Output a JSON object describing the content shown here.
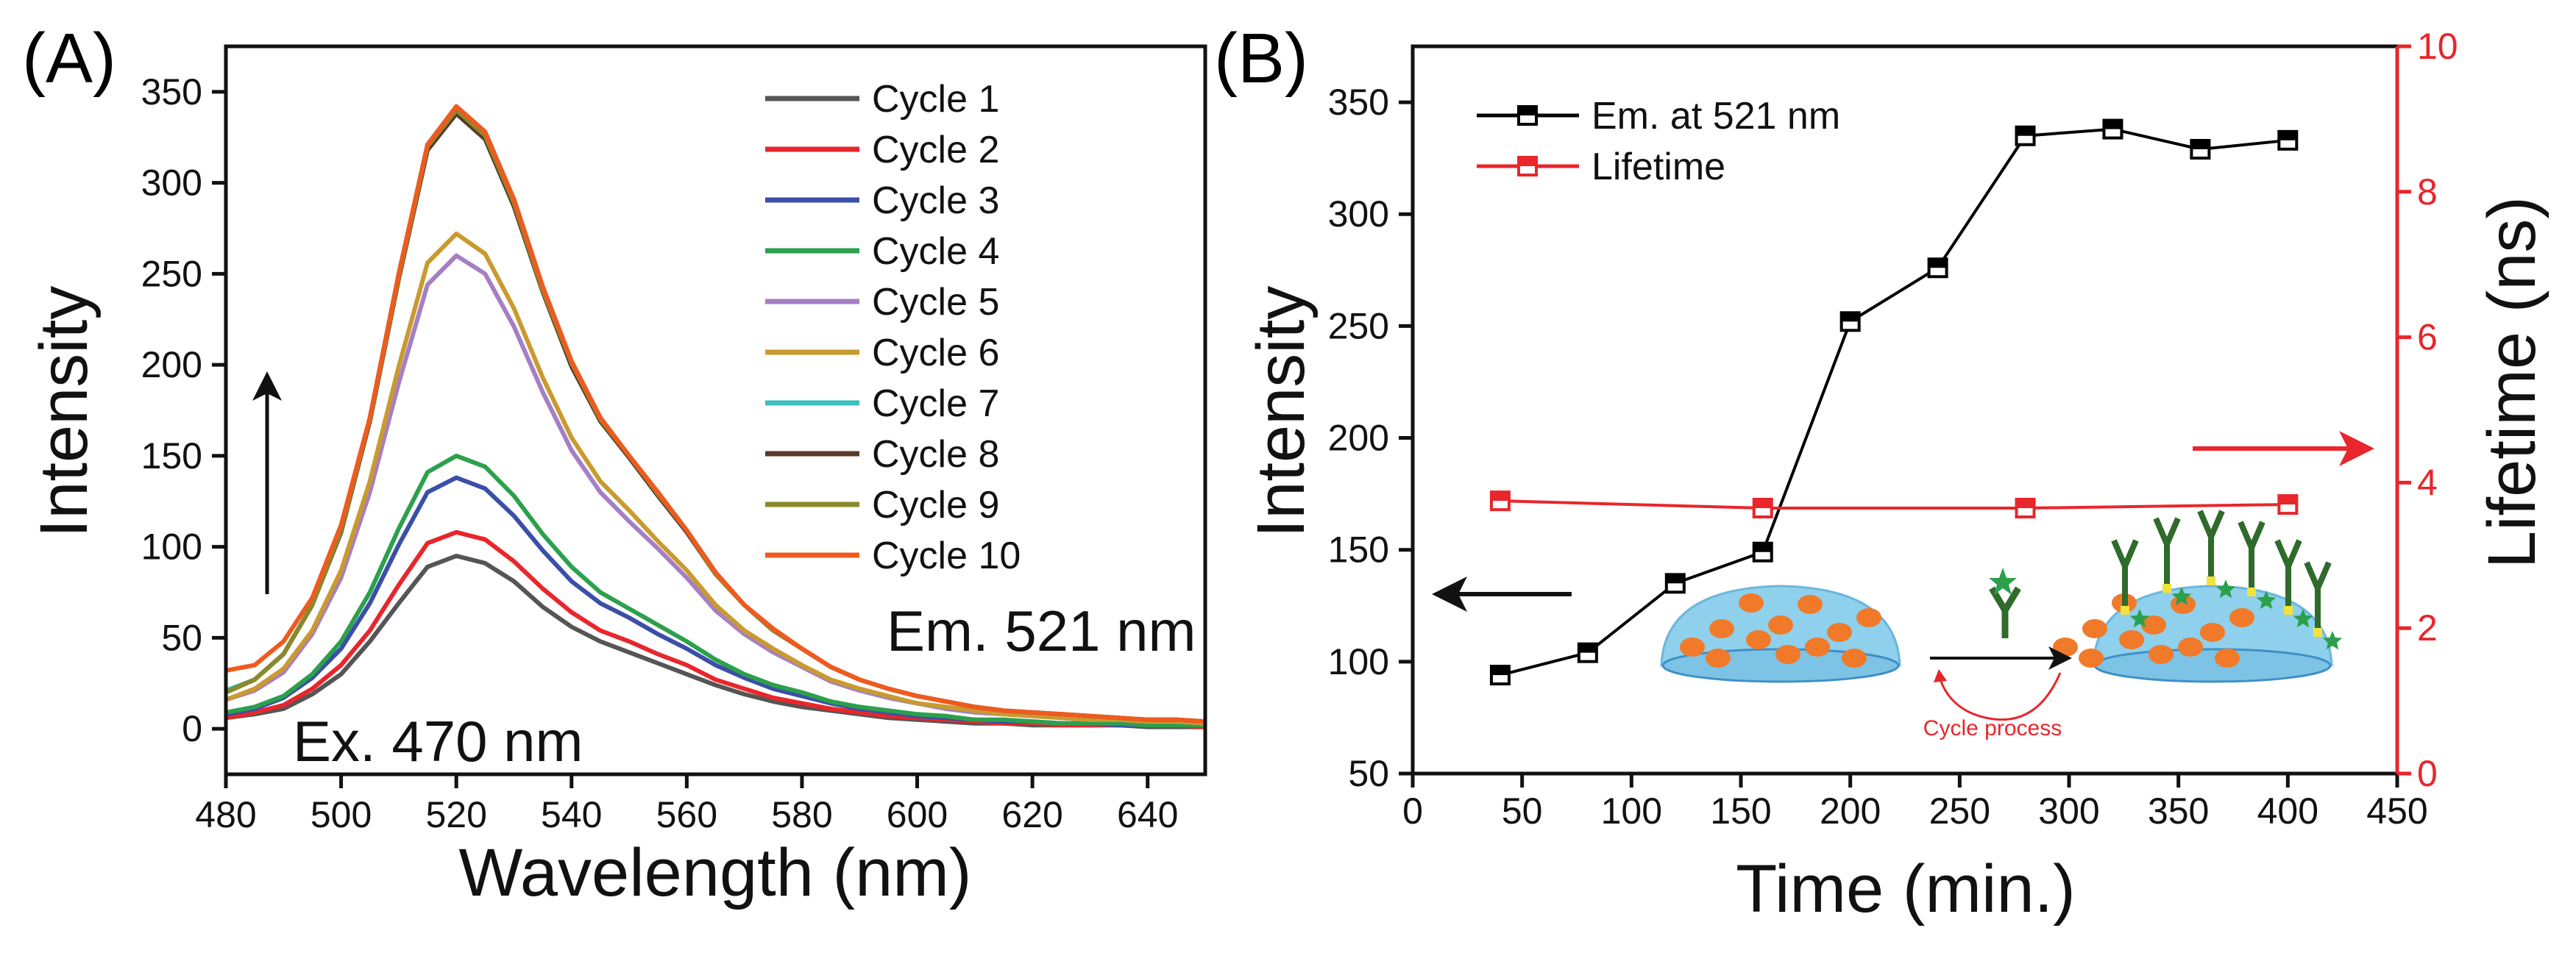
{
  "chart_data": [
    {
      "panel_label": "(A)",
      "type": "line",
      "xlabel": "Wavelength (nm)",
      "ylabel": "Intensity",
      "xlim": [
        480,
        650
      ],
      "ylim": [
        -25,
        375
      ],
      "xticks": [
        480,
        500,
        520,
        540,
        560,
        580,
        600,
        620,
        640
      ],
      "yticks": [
        0,
        50,
        100,
        150,
        200,
        250,
        300,
        350
      ],
      "grid": false,
      "legend_position": "top-right",
      "annotations": [
        "Ex. 470 nm",
        "Em. 521 nm"
      ],
      "x": [
        480,
        485,
        490,
        495,
        500,
        505,
        510,
        515,
        520,
        525,
        530,
        535,
        540,
        545,
        550,
        555,
        560,
        565,
        570,
        575,
        580,
        585,
        590,
        595,
        600,
        605,
        610,
        615,
        620,
        625,
        630,
        635,
        640,
        645,
        650
      ],
      "series": [
        {
          "name": "Cycle 1",
          "color": "#555555",
          "values": [
            6,
            8,
            11,
            19,
            30,
            48,
            69,
            89,
            95,
            91,
            81,
            67,
            56,
            48,
            42,
            36,
            30,
            24,
            19,
            15,
            12,
            10,
            8,
            6,
            5,
            4,
            3,
            3,
            2,
            2,
            2,
            2,
            1,
            1,
            1
          ]
        },
        {
          "name": "Cycle 2",
          "color": "#e8262b",
          "values": [
            6,
            9,
            13,
            22,
            35,
            54,
            79,
            102,
            108,
            104,
            92,
            77,
            64,
            54,
            48,
            41,
            35,
            27,
            22,
            17,
            14,
            11,
            9,
            7,
            6,
            5,
            4,
            3,
            3,
            2,
            2,
            2,
            2,
            2,
            1
          ]
        },
        {
          "name": "Cycle 3",
          "color": "#3b4fa8",
          "values": [
            8,
            11,
            17,
            28,
            44,
            69,
            101,
            130,
            138,
            132,
            117,
            98,
            81,
            69,
            61,
            52,
            44,
            35,
            28,
            22,
            18,
            14,
            11,
            9,
            7,
            6,
            5,
            4,
            4,
            3,
            3,
            2,
            2,
            2,
            2
          ]
        },
        {
          "name": "Cycle 4",
          "color": "#2ca04c",
          "values": [
            9,
            12,
            18,
            30,
            48,
            75,
            110,
            141,
            150,
            144,
            128,
            107,
            89,
            75,
            66,
            57,
            48,
            38,
            30,
            24,
            20,
            15,
            12,
            10,
            8,
            7,
            5,
            5,
            4,
            3,
            3,
            3,
            2,
            2,
            2
          ]
        },
        {
          "name": "Cycle 5",
          "color": "#a57fc4",
          "values": [
            16,
            21,
            31,
            52,
            83,
            130,
            190,
            244,
            260,
            250,
            221,
            185,
            153,
            130,
            114,
            99,
            83,
            65,
            52,
            42,
            34,
            26,
            21,
            17,
            14,
            11,
            9,
            8,
            7,
            6,
            5,
            5,
            4,
            4,
            3
          ]
        },
        {
          "name": "Cycle 6",
          "color": "#c99a2e",
          "values": [
            16,
            22,
            33,
            54,
            87,
            136,
            199,
            256,
            272,
            261,
            231,
            193,
            160,
            136,
            120,
            103,
            87,
            68,
            54,
            44,
            35,
            27,
            22,
            18,
            14,
            12,
            10,
            8,
            7,
            6,
            5,
            5,
            4,
            4,
            3
          ]
        },
        {
          "name": "Cycle 7",
          "color": "#3bbfbf",
          "values": [
            21,
            27,
            41,
            68,
            109,
            171,
            250,
            321,
            342,
            328,
            291,
            243,
            202,
            171,
            150,
            130,
            109,
            86,
            68,
            55,
            44,
            34,
            27,
            22,
            18,
            15,
            12,
            10,
            9,
            8,
            7,
            6,
            5,
            5,
            4
          ]
        },
        {
          "name": "Cycle 8",
          "color": "#5a3a2a",
          "values": [
            20,
            27,
            41,
            68,
            108,
            169,
            247,
            318,
            338,
            324,
            287,
            240,
            199,
            169,
            149,
            128,
            108,
            85,
            68,
            54,
            44,
            34,
            27,
            22,
            18,
            15,
            12,
            10,
            9,
            8,
            7,
            6,
            5,
            5,
            4
          ]
        },
        {
          "name": "Cycle 9",
          "color": "#8a8a2a",
          "values": [
            20,
            27,
            41,
            68,
            109,
            170,
            248,
            320,
            340,
            326,
            289,
            241,
            201,
            170,
            150,
            129,
            109,
            85,
            68,
            54,
            44,
            34,
            27,
            22,
            18,
            15,
            12,
            10,
            9,
            8,
            7,
            6,
            5,
            5,
            4
          ]
        },
        {
          "name": "Cycle 10",
          "color": "#f05a1e",
          "values": [
            32,
            35,
            48,
            72,
            112,
            171,
            250,
            321,
            342,
            328,
            291,
            243,
            202,
            171,
            150,
            130,
            109,
            86,
            68,
            55,
            44,
            34,
            27,
            22,
            18,
            15,
            12,
            10,
            9,
            8,
            7,
            6,
            5,
            5,
            4
          ]
        }
      ]
    },
    {
      "panel_label": "(B)",
      "type": "line",
      "xlabel": "Time (min.)",
      "ylabel": "Intensity",
      "y2label": "Lifetime (ns)",
      "xlim": [
        0,
        450
      ],
      "ylim": [
        50,
        375
      ],
      "y2lim": [
        0,
        10
      ],
      "xticks": [
        0,
        50,
        100,
        150,
        200,
        250,
        300,
        350,
        400,
        450
      ],
      "yticks": [
        50,
        100,
        150,
        200,
        250,
        300,
        350
      ],
      "y2ticks": [
        0,
        2,
        4,
        6,
        8,
        10
      ],
      "grid": false,
      "legend_position": "top-left",
      "inset_label": "Cycle process",
      "series": [
        {
          "name": "Em. at 521 nm",
          "axis": "left",
          "color": "#000000",
          "x": [
            40,
            80,
            120,
            160,
            200,
            240,
            280,
            320,
            360,
            400
          ],
          "values": [
            94,
            104,
            135,
            149,
            252,
            276,
            335,
            338,
            329,
            333
          ]
        },
        {
          "name": "Lifetime",
          "axis": "right",
          "color": "#e8262b",
          "x": [
            40,
            160,
            280,
            400
          ],
          "values": [
            3.75,
            3.65,
            3.65,
            3.7
          ]
        }
      ]
    }
  ]
}
